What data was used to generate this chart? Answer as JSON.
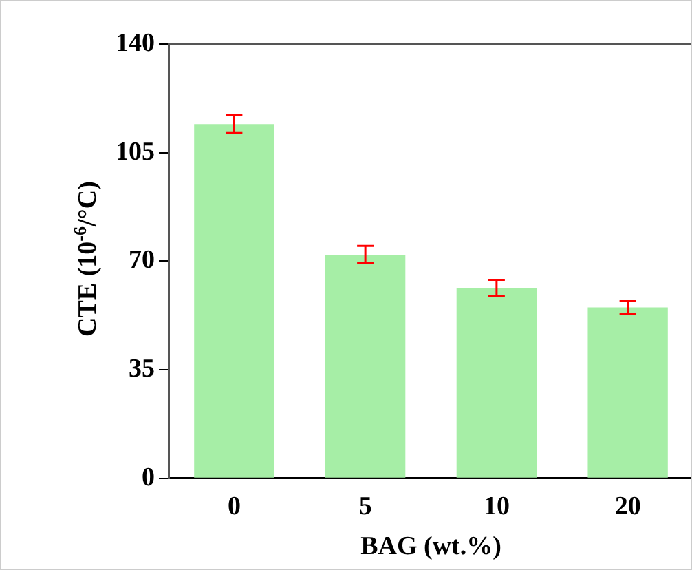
{
  "chart_data": {
    "type": "bar",
    "xlabel": "BAG (wt.%)",
    "ylabel": "CTE (10$^{-6}$/°C)",
    "categories": [
      "0",
      "5",
      "10",
      "20"
    ],
    "values": [
      114.2,
      72.1,
      61.4,
      55.1
    ],
    "errors": [
      2.9,
      2.8,
      2.6,
      2.0
    ],
    "color": "#a6eea6",
    "ylim": [
      0,
      140
    ],
    "yticks": [
      0,
      35,
      70,
      105,
      140
    ],
    "grid": false,
    "legend": false
  }
}
